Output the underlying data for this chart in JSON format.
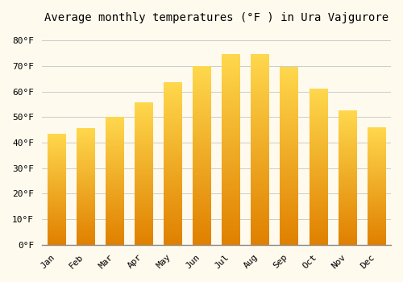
{
  "title": "Average monthly temperatures (°F ) in Ura Vajgurore",
  "months": [
    "Jan",
    "Feb",
    "Mar",
    "Apr",
    "May",
    "Jun",
    "Jul",
    "Aug",
    "Sep",
    "Oct",
    "Nov",
    "Dec"
  ],
  "values": [
    43.5,
    45.5,
    50.0,
    55.5,
    63.5,
    70.0,
    74.5,
    74.5,
    69.5,
    61.0,
    52.5,
    46.0
  ],
  "bar_color_bottom": "#E08000",
  "bar_color_top": "#FFD84D",
  "background_color": "#FFFAEE",
  "grid_color": "#CCCCCC",
  "ylim": [
    0,
    85
  ],
  "ytick_step": 10,
  "title_fontsize": 10,
  "tick_fontsize": 8,
  "font_family": "monospace",
  "bar_width": 0.62
}
